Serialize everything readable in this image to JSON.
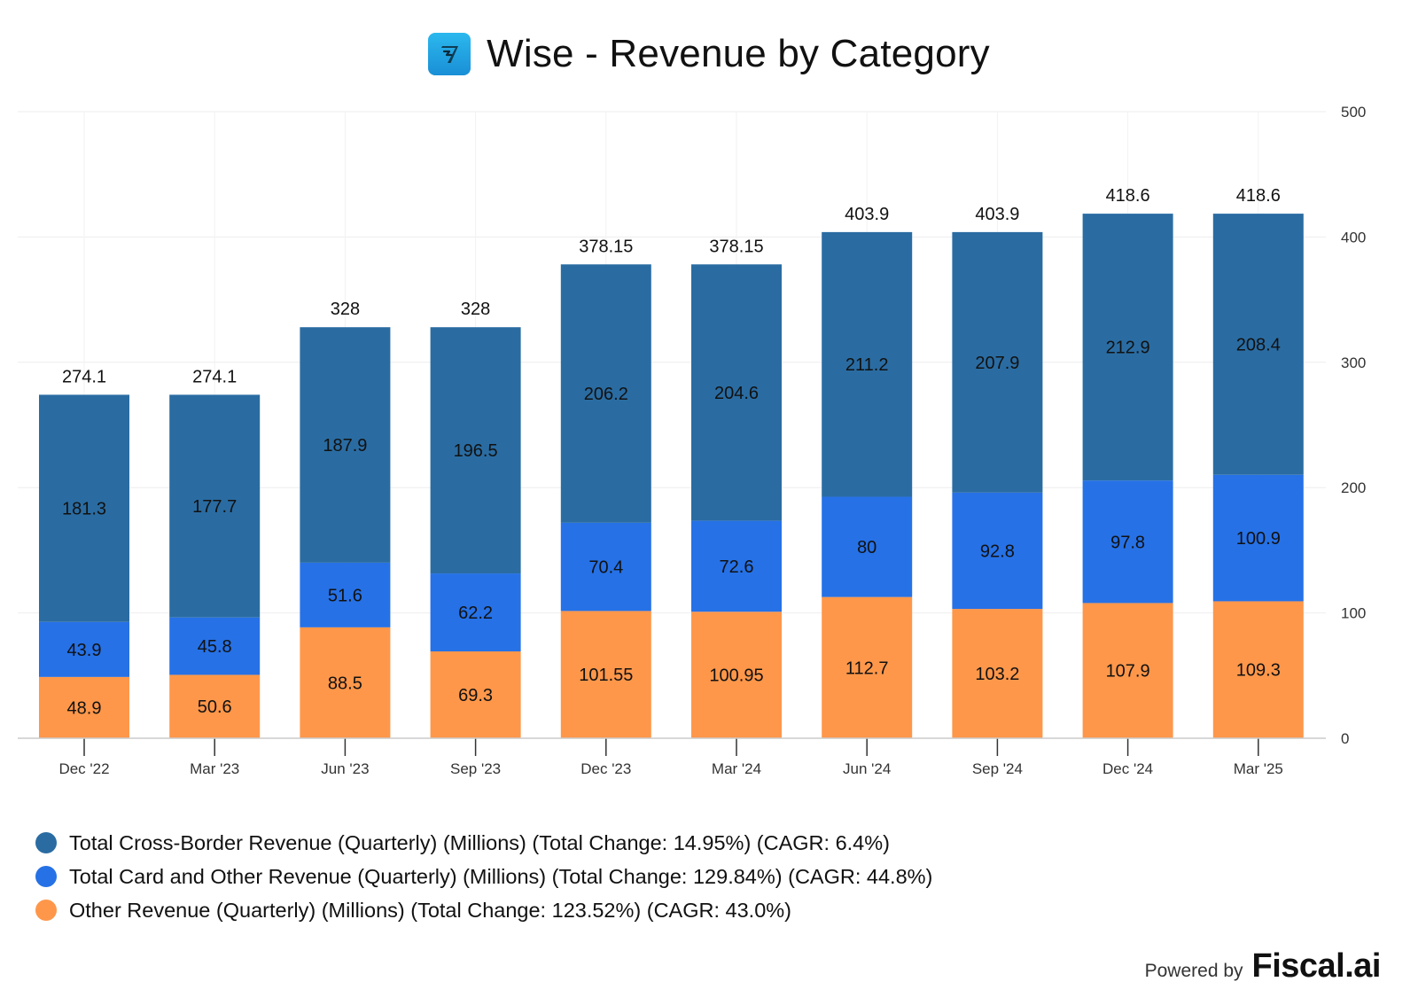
{
  "title": "Wise - Revenue by Category",
  "footer": {
    "powered_by": "Powered by",
    "brand": "Fiscal.ai"
  },
  "colors": {
    "cross_border": "#2a6ca2",
    "card_other": "#2671e6",
    "other": "#fe974a",
    "grid": "#eeeeee",
    "axis": "#cccccc",
    "logo": "#1f9fe0"
  },
  "icons": {
    "logo": "wise-logo-icon"
  },
  "legend": [
    {
      "label": "Total Cross-Border Revenue (Quarterly) (Millions) (Total Change: 14.95%) (CAGR: 6.4%)",
      "color": "#2a6ca2"
    },
    {
      "label": "Total Card and Other Revenue (Quarterly) (Millions) (Total Change: 129.84%) (CAGR: 44.8%)",
      "color": "#2671e6"
    },
    {
      "label": "Other Revenue (Quarterly) (Millions) (Total Change: 123.52%) (CAGR: 43.0%)",
      "color": "#fe974a"
    }
  ],
  "chart_data": {
    "type": "bar",
    "stacked": true,
    "title": "Wise - Revenue by Category",
    "categories": [
      "Dec '22",
      "Mar '23",
      "Jun '23",
      "Sep '23",
      "Dec '23",
      "Mar '24",
      "Jun '24",
      "Sep '24",
      "Dec '24",
      "Mar '25"
    ],
    "series": [
      {
        "name": "Other Revenue (Quarterly) (Millions)",
        "color": "#fe974a",
        "values": [
          48.9,
          50.6,
          88.5,
          69.3,
          101.55,
          100.95,
          112.7,
          103.2,
          107.9,
          109.3
        ]
      },
      {
        "name": "Total Card and Other Revenue (Quarterly) (Millions)",
        "color": "#2671e6",
        "values": [
          43.9,
          45.8,
          51.6,
          62.2,
          70.4,
          72.6,
          80,
          92.8,
          97.8,
          100.9
        ]
      },
      {
        "name": "Total Cross-Border Revenue (Quarterly) (Millions)",
        "color": "#2a6ca2",
        "values": [
          181.3,
          177.7,
          187.9,
          196.5,
          206.2,
          204.6,
          211.2,
          207.9,
          212.9,
          208.4
        ]
      }
    ],
    "segment_labels": [
      [
        "48.9",
        "50.6",
        "88.5",
        "69.3",
        "101.55",
        "100.95",
        "112.7",
        "103.2",
        "107.9",
        "109.3"
      ],
      [
        "43.9",
        "45.8",
        "51.6",
        "62.2",
        "70.4",
        "72.6",
        "80",
        "92.8",
        "97.8",
        "100.9"
      ],
      [
        "181.3",
        "177.7",
        "187.9",
        "196.5",
        "206.2",
        "204.6",
        "211.2",
        "207.9",
        "212.9",
        "208.4"
      ]
    ],
    "totals": [
      274.1,
      274.1,
      328,
      328,
      378.15,
      378.15,
      403.9,
      403.9,
      418.6,
      418.6
    ],
    "total_labels": [
      "274.1",
      "274.1",
      "328",
      "328",
      "378.15",
      "378.15",
      "403.9",
      "403.9",
      "418.6",
      "418.6"
    ],
    "y_axis": {
      "position": "right",
      "ylim": [
        0,
        500
      ],
      "ticks": [
        0,
        100,
        200,
        300,
        400,
        500
      ]
    },
    "grid": true,
    "legend_position": "bottom-left"
  }
}
